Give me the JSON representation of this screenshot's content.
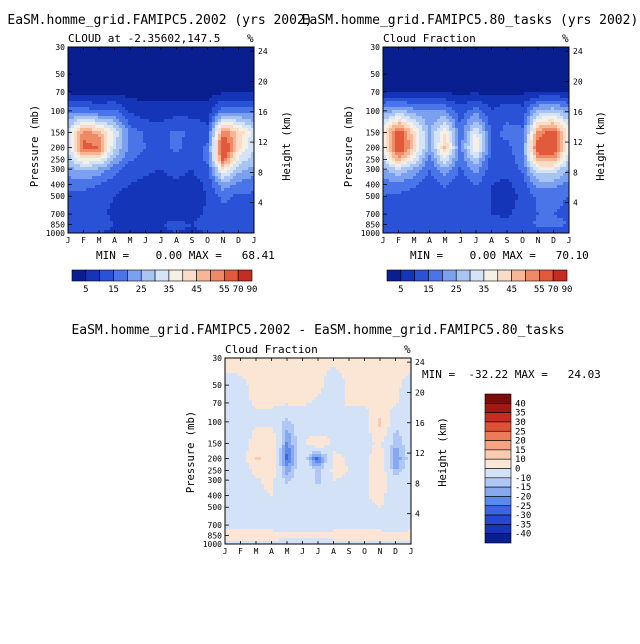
{
  "colors": {
    "page_background": "#ffffff",
    "sequential_scale": [
      "#0a1f8f",
      "#1535b8",
      "#2a52d6",
      "#4a75e8",
      "#7aa0ef",
      "#a8c4f3",
      "#d4e3f7",
      "#f4f0e6",
      "#fbdcc6",
      "#f7b797",
      "#ee8a66",
      "#e25a3c",
      "#c42e22",
      "#8c1010"
    ],
    "difference_scale": [
      "#0a1f8f",
      "#1535b8",
      "#2448cf",
      "#3a66e0",
      "#5d89ea",
      "#86a9f0",
      "#afc7f4",
      "#d3e2f7",
      "#fbe6d6",
      "#f9cbb0",
      "#f4a482",
      "#ec7b57",
      "#de5233",
      "#c42e22",
      "#a01a12",
      "#7a0c0c"
    ]
  },
  "chart_data": [
    {
      "id": "panel-2002",
      "type": "heatmap",
      "title": "EaSM.homme_grid.FAMIPC5.2002 (yrs 2002)",
      "subtitle": "CLOUD at -2.35602,147.5",
      "unit_label": "%",
      "xlabel": "",
      "ylabel": "Pressure (mb)",
      "y2label": "Height (km)",
      "x_tick_labels": [
        "J",
        "F",
        "M",
        "A",
        "M",
        "J",
        "J",
        "A",
        "S",
        "O",
        "N",
        "D",
        "J"
      ],
      "pressure_levels": [
        30,
        50,
        70,
        100,
        150,
        200,
        250,
        300,
        400,
        500,
        700,
        850,
        1000
      ],
      "pressure_tick_labels": [
        "30",
        "50",
        "70",
        "100",
        "150",
        "200",
        "250",
        "300",
        "400",
        "500",
        "700",
        "850",
        "1000"
      ],
      "height_ticks_km": [
        4,
        8,
        12,
        16,
        20,
        24
      ],
      "height_tick_labels": [
        "4",
        "8",
        "12",
        "16",
        "20",
        "24"
      ],
      "min_text": "MIN =    0.00 MAX =   68.41",
      "colorbar": {
        "orientation": "horizontal",
        "bounds": [
          0,
          5,
          10,
          15,
          20,
          25,
          30,
          35,
          40,
          45,
          50,
          55,
          70,
          90
        ],
        "tick_labels": [
          "5",
          "15",
          "25",
          "35",
          "45",
          "55",
          "70",
          "90"
        ]
      },
      "months": [
        0,
        1,
        2,
        3,
        4,
        5,
        6,
        7,
        8,
        9,
        10,
        11,
        12
      ],
      "values": [
        [
          0,
          0,
          0,
          0,
          0,
          0,
          0,
          0,
          0,
          0,
          0,
          0,
          0
        ],
        [
          1,
          1,
          1,
          1,
          1,
          1,
          1,
          1,
          1,
          1,
          1,
          1,
          1
        ],
        [
          4,
          3,
          3,
          4,
          3,
          3,
          3,
          3,
          3,
          3,
          4,
          4,
          4
        ],
        [
          18,
          18,
          14,
          16,
          9,
          7,
          7,
          8,
          8,
          7,
          18,
          18,
          18
        ],
        [
          32,
          52,
          48,
          34,
          18,
          14,
          13,
          16,
          14,
          12,
          54,
          44,
          32
        ],
        [
          30,
          58,
          55,
          30,
          18,
          15,
          14,
          16,
          13,
          16,
          65,
          42,
          30
        ],
        [
          27,
          40,
          38,
          24,
          16,
          13,
          12,
          14,
          12,
          16,
          58,
          34,
          27
        ],
        [
          23,
          26,
          24,
          17,
          12,
          11,
          10,
          12,
          10,
          14,
          40,
          27,
          23
        ],
        [
          17,
          17,
          15,
          12,
          10,
          9,
          8,
          9,
          8,
          11,
          24,
          18,
          17
        ],
        [
          14,
          13,
          12,
          10,
          8,
          8,
          8,
          8,
          8,
          10,
          16,
          14,
          14
        ],
        [
          12,
          12,
          11,
          9,
          7,
          7,
          8,
          9,
          8,
          11,
          14,
          13,
          12
        ],
        [
          13,
          13,
          12,
          10,
          9,
          9,
          10,
          11,
          10,
          12,
          15,
          14,
          13
        ],
        [
          11,
          11,
          10,
          9,
          8,
          8,
          9,
          10,
          9,
          10,
          12,
          12,
          11
        ]
      ]
    },
    {
      "id": "panel-80tasks",
      "type": "heatmap",
      "title": "EaSM.homme_grid.FAMIPC5.80_tasks (yrs 2002)",
      "subtitle": "Cloud Fraction",
      "unit_label": "%",
      "xlabel": "",
      "ylabel": "Pressure (mb)",
      "y2label": "Height (km)",
      "x_tick_labels": [
        "J",
        "F",
        "M",
        "A",
        "M",
        "J",
        "J",
        "A",
        "S",
        "O",
        "N",
        "D",
        "J"
      ],
      "pressure_levels": [
        30,
        50,
        70,
        100,
        150,
        200,
        250,
        300,
        400,
        500,
        700,
        850,
        1000
      ],
      "pressure_tick_labels": [
        "30",
        "50",
        "70",
        "100",
        "150",
        "200",
        "250",
        "300",
        "400",
        "500",
        "700",
        "850",
        "1000"
      ],
      "height_ticks_km": [
        4,
        8,
        12,
        16,
        20,
        24
      ],
      "height_tick_labels": [
        "4",
        "8",
        "12",
        "16",
        "20",
        "24"
      ],
      "min_text": "MIN =    0.00 MAX =   70.10",
      "colorbar": {
        "orientation": "horizontal",
        "bounds": [
          0,
          5,
          10,
          15,
          20,
          25,
          30,
          35,
          40,
          45,
          50,
          55,
          70,
          90
        ],
        "tick_labels": [
          "5",
          "15",
          "25",
          "35",
          "45",
          "55",
          "70",
          "90"
        ]
      },
      "months": [
        0,
        1,
        2,
        3,
        4,
        5,
        6,
        7,
        8,
        9,
        10,
        11,
        12
      ],
      "values": [
        [
          0,
          0,
          0,
          0,
          0,
          0,
          0,
          0,
          0,
          0,
          0,
          0,
          0
        ],
        [
          1,
          1,
          1,
          1,
          1,
          1,
          1,
          1,
          1,
          1,
          1,
          1,
          1
        ],
        [
          5,
          5,
          4,
          4,
          4,
          4,
          4,
          4,
          4,
          4,
          5,
          5,
          5
        ],
        [
          22,
          26,
          22,
          20,
          20,
          12,
          18,
          10,
          14,
          12,
          26,
          28,
          22
        ],
        [
          38,
          60,
          42,
          24,
          40,
          16,
          36,
          14,
          16,
          16,
          52,
          58,
          38
        ],
        [
          36,
          64,
          44,
          22,
          46,
          18,
          42,
          14,
          14,
          18,
          60,
          62,
          36
        ],
        [
          30,
          48,
          34,
          18,
          34,
          16,
          30,
          12,
          12,
          18,
          50,
          50,
          30
        ],
        [
          24,
          30,
          24,
          15,
          24,
          14,
          22,
          12,
          11,
          16,
          34,
          34,
          24
        ],
        [
          18,
          18,
          16,
          12,
          16,
          11,
          16,
          10,
          9,
          12,
          22,
          22,
          18
        ],
        [
          15,
          14,
          13,
          11,
          12,
          10,
          12,
          10,
          8,
          11,
          16,
          16,
          15
        ],
        [
          14,
          13,
          12,
          11,
          10,
          10,
          11,
          10,
          9,
          12,
          15,
          15,
          14
        ],
        [
          15,
          14,
          13,
          12,
          12,
          12,
          13,
          12,
          11,
          13,
          16,
          16,
          15
        ],
        [
          12,
          12,
          11,
          10,
          10,
          10,
          11,
          10,
          10,
          11,
          13,
          13,
          12
        ]
      ]
    },
    {
      "id": "panel-diff",
      "type": "heatmap",
      "title": "EaSM.homme_grid.FAMIPC5.2002 - EaSM.homme_grid.FAMIPC5.80_tasks",
      "subtitle": "Cloud Fraction",
      "unit_label": "%",
      "xlabel": "",
      "ylabel": "Pressure (mb)",
      "y2label": "Height (km)",
      "x_tick_labels": [
        "J",
        "F",
        "M",
        "A",
        "M",
        "J",
        "J",
        "A",
        "S",
        "O",
        "N",
        "D",
        "J"
      ],
      "pressure_levels": [
        30,
        50,
        70,
        100,
        150,
        200,
        250,
        300,
        400,
        500,
        700,
        850,
        1000
      ],
      "pressure_tick_labels": [
        "30",
        "50",
        "70",
        "100",
        "150",
        "200",
        "250",
        "300",
        "400",
        "500",
        "700",
        "850",
        "1000"
      ],
      "height_ticks_km": [
        4,
        8,
        12,
        16,
        20,
        24
      ],
      "height_tick_labels": [
        "4",
        "8",
        "12",
        "16",
        "20",
        "24"
      ],
      "min_text": "MIN =  -32.22 MAX =   24.03",
      "colorbar": {
        "orientation": "vertical",
        "bounds": [
          -45,
          -40,
          -35,
          -30,
          -25,
          -20,
          -15,
          -10,
          0,
          10,
          15,
          20,
          25,
          30,
          35,
          40,
          45
        ],
        "tick_labels": [
          "40",
          "35",
          "30",
          "25",
          "20",
          "15",
          "10",
          "0",
          "-10",
          "-15",
          "-20",
          "-25",
          "-30",
          "-35",
          "-40"
        ]
      },
      "months": [
        0,
        1,
        2,
        3,
        4,
        5,
        6,
        7,
        8,
        9,
        10,
        11,
        12
      ],
      "values": [
        [
          2,
          2,
          2,
          2,
          2,
          2,
          2,
          2,
          2,
          2,
          2,
          2,
          2
        ],
        [
          -2,
          -1,
          1,
          1,
          1,
          1,
          2,
          -4,
          1,
          1,
          1,
          1,
          -2
        ],
        [
          -3,
          -2,
          1,
          1,
          1,
          1,
          -1,
          -3,
          1,
          1,
          1,
          1,
          -3
        ],
        [
          -5,
          -8,
          -2,
          -3,
          -12,
          -4,
          -11,
          -3,
          -4,
          -5,
          13,
          -8,
          -5
        ],
        [
          -6,
          -8,
          6,
          10,
          -22,
          -2,
          8,
          -2,
          -2,
          -4,
          2,
          -14,
          -6
        ],
        [
          -6,
          -6,
          11,
          8,
          -28,
          -3,
          -28,
          2,
          -1,
          -2,
          5,
          -20,
          -6
        ],
        [
          -3,
          -8,
          4,
          6,
          -18,
          -3,
          -12,
          2,
          0,
          -2,
          8,
          -16,
          -3
        ],
        [
          -1,
          -4,
          -1,
          2,
          -12,
          -3,
          -12,
          0,
          -1,
          -2,
          6,
          -7,
          -1
        ],
        [
          -1,
          -1,
          -1,
          0,
          -6,
          -2,
          -8,
          -1,
          -1,
          -1,
          2,
          -4,
          -1
        ],
        [
          -1,
          -1,
          -1,
          -1,
          -4,
          -2,
          -4,
          -2,
          0,
          -1,
          0,
          -2,
          -1
        ],
        [
          -2,
          -1,
          -1,
          -2,
          -3,
          -3,
          -3,
          -1,
          -1,
          -1,
          -1,
          -2,
          -2
        ],
        [
          2,
          1,
          1,
          2,
          1,
          1,
          1,
          1,
          1,
          1,
          1,
          1,
          2
        ],
        [
          -1,
          -1,
          -1,
          -1,
          -2,
          -2,
          -2,
          -1,
          -1,
          -1,
          -1,
          -1,
          -1
        ]
      ]
    }
  ]
}
